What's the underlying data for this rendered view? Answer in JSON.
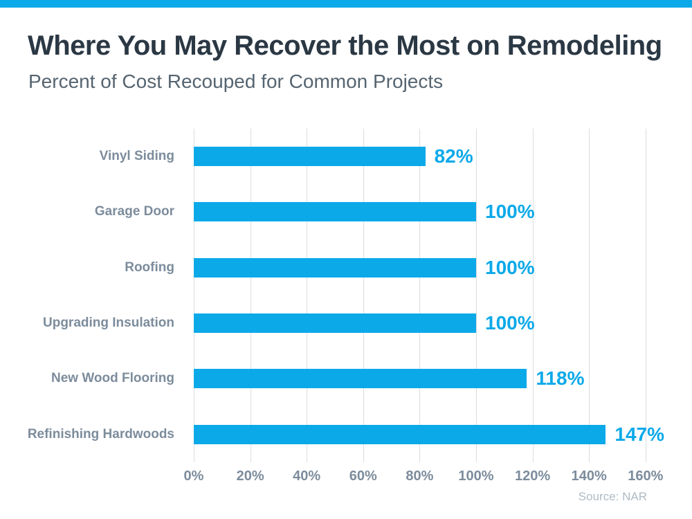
{
  "page": {
    "background": "#ffffff",
    "accent_color": "#0CA9E9"
  },
  "header": {
    "title": "Where You May Recover the Most on Remodeling",
    "subtitle": "Percent of Cost Recouped for Common Projects"
  },
  "chart_data": {
    "type": "bar",
    "orientation": "horizontal",
    "title": "Where You May Recover the Most on Remodeling",
    "subtitle": "Percent of Cost Recouped for Common Projects",
    "categories": [
      "Vinyl Siding",
      "Garage Door",
      "Roofing",
      "Upgrading Insulation",
      "New Wood Flooring",
      "Refinishing Hardwoods"
    ],
    "values": [
      82,
      100,
      100,
      100,
      118,
      147
    ],
    "value_labels": [
      "82%",
      "100%",
      "100%",
      "100%",
      "118%",
      "147%"
    ],
    "x_ticks": [
      "0%",
      "20%",
      "40%",
      "60%",
      "80%",
      "100%",
      "120%",
      "140%",
      "160%"
    ],
    "x_tick_values": [
      0,
      20,
      40,
      60,
      80,
      100,
      120,
      140,
      160
    ],
    "xlim": [
      0,
      160
    ],
    "grid": true,
    "legend": "none",
    "bar_color": "#0CA9E9",
    "value_label_color": "#0CA9E9",
    "category_label_color": "#7C8C9C",
    "tick_label_color": "#7C8C9C",
    "gridline_color": "#D9DDE1"
  },
  "footer": {
    "source": "Source: NAR"
  }
}
